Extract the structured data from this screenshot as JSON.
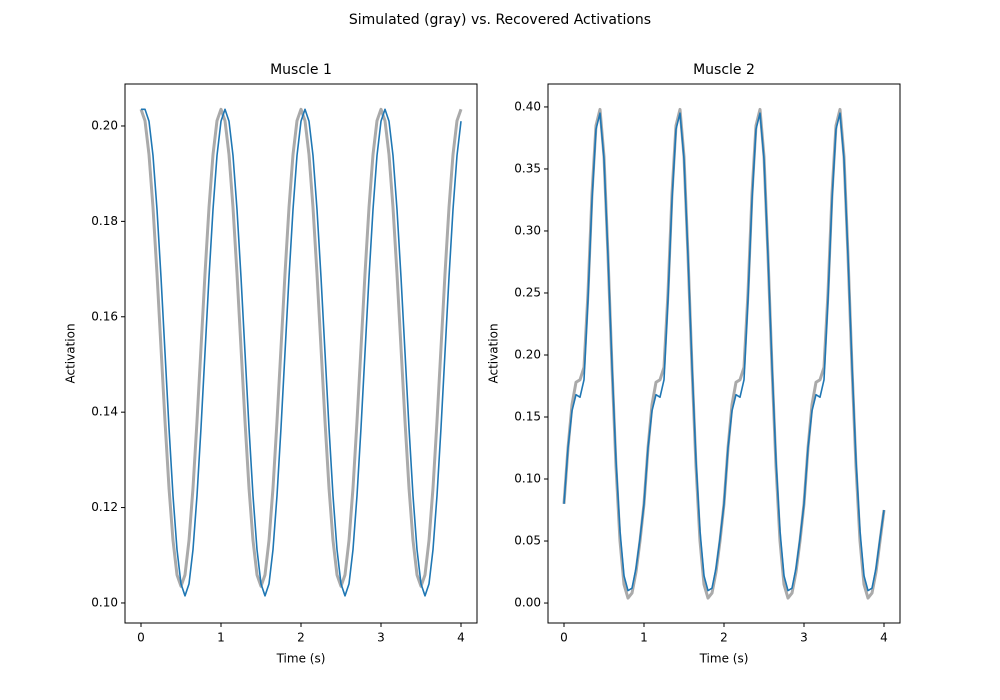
{
  "title": "Simulated (gray) vs. Recovered Activations",
  "chart_data": [
    {
      "type": "line",
      "title": "Muscle 1",
      "xlabel": "Time (s)",
      "ylabel": "Activation",
      "x": [
        0,
        0.05,
        0.1,
        0.15,
        0.2,
        0.25,
        0.3,
        0.35,
        0.4,
        0.45,
        0.5,
        0.55,
        0.6,
        0.65,
        0.7,
        0.75,
        0.8,
        0.85,
        0.9,
        0.95,
        1,
        1.05,
        1.1,
        1.15,
        1.2,
        1.25,
        1.3,
        1.35,
        1.4,
        1.45,
        1.5,
        1.55,
        1.6,
        1.65,
        1.7,
        1.75,
        1.8,
        1.85,
        1.9,
        1.95,
        2,
        2.05,
        2.1,
        2.15,
        2.2,
        2.25,
        2.3,
        2.35,
        2.4,
        2.45,
        2.5,
        2.55,
        2.6,
        2.65,
        2.7,
        2.75,
        2.8,
        2.85,
        2.9,
        2.95,
        3,
        3.05,
        3.1,
        3.15,
        3.2,
        3.25,
        3.3,
        3.35,
        3.4,
        3.45,
        3.5,
        3.55,
        3.6,
        3.65,
        3.7,
        3.75,
        3.8,
        3.85,
        3.9,
        3.95,
        4
      ],
      "series": [
        {
          "color": "#aaaaaa",
          "width": 3,
          "values": [
            0.2035,
            0.2011,
            0.194,
            0.1829,
            0.169,
            0.1535,
            0.1381,
            0.1241,
            0.1131,
            0.1059,
            0.1035,
            0.1059,
            0.1131,
            0.1241,
            0.1381,
            0.1535,
            0.169,
            0.1829,
            0.194,
            0.2011,
            0.2035,
            0.2011,
            0.194,
            0.1829,
            0.169,
            0.1535,
            0.1381,
            0.1241,
            0.1131,
            0.1059,
            0.1035,
            0.1059,
            0.1131,
            0.1241,
            0.1381,
            0.1535,
            0.169,
            0.1829,
            0.194,
            0.2011,
            0.2035,
            0.2011,
            0.194,
            0.1829,
            0.169,
            0.1535,
            0.1381,
            0.1241,
            0.1131,
            0.1059,
            0.1035,
            0.1059,
            0.1131,
            0.1241,
            0.1381,
            0.1535,
            0.169,
            0.1829,
            0.194,
            0.2011,
            0.2035,
            0.2011,
            0.194,
            0.1829,
            0.169,
            0.1535,
            0.1381,
            0.1241,
            0.1131,
            0.1059,
            0.1035,
            0.1059,
            0.1131,
            0.1241,
            0.1381,
            0.1535,
            0.169,
            0.1829,
            0.194,
            0.2011,
            0.2035
          ]
        },
        {
          "color": "#1f77b4",
          "width": 1.6,
          "values": [
            0.2035,
            0.2035,
            0.201,
            0.1938,
            0.1825,
            0.1683,
            0.1525,
            0.1367,
            0.1225,
            0.1112,
            0.104,
            0.1015,
            0.104,
            0.1112,
            0.1225,
            0.1367,
            0.1525,
            0.1683,
            0.1825,
            0.1938,
            0.201,
            0.2035,
            0.201,
            0.1938,
            0.1825,
            0.1683,
            0.1525,
            0.1367,
            0.1225,
            0.1112,
            0.104,
            0.1015,
            0.104,
            0.1112,
            0.1225,
            0.1367,
            0.1525,
            0.1683,
            0.1825,
            0.1938,
            0.201,
            0.2035,
            0.201,
            0.1938,
            0.1825,
            0.1683,
            0.1525,
            0.1367,
            0.1225,
            0.1112,
            0.104,
            0.1015,
            0.104,
            0.1112,
            0.1225,
            0.1367,
            0.1525,
            0.1683,
            0.1825,
            0.1938,
            0.201,
            0.2035,
            0.201,
            0.1938,
            0.1825,
            0.1683,
            0.1525,
            0.1367,
            0.1225,
            0.1112,
            0.104,
            0.1015,
            0.104,
            0.1112,
            0.1225,
            0.1367,
            0.1525,
            0.1683,
            0.1825,
            0.1938,
            0.201
          ]
        }
      ],
      "xlim": [
        -0.2,
        4.2
      ],
      "xticks": [
        0,
        1,
        2,
        3,
        4
      ],
      "ylim": [
        0.0958,
        0.2088
      ],
      "yticks": [
        {
          "value": 0.1,
          "label": "0.10"
        },
        0.12,
        0.14,
        0.16,
        0.18,
        {
          "value": 0.2,
          "label": "0.20"
        }
      ]
    },
    {
      "type": "line",
      "title": "Muscle 2",
      "xlabel": "Time (s)",
      "ylabel": "Activation",
      "x": [
        0,
        0.05,
        0.1,
        0.15,
        0.2,
        0.25,
        0.3,
        0.35,
        0.4,
        0.45,
        0.5,
        0.55,
        0.6,
        0.65,
        0.7,
        0.75,
        0.8,
        0.85,
        0.9,
        0.95,
        1,
        1.05,
        1.1,
        1.15,
        1.2,
        1.25,
        1.3,
        1.35,
        1.4,
        1.45,
        1.5,
        1.55,
        1.6,
        1.65,
        1.7,
        1.75,
        1.8,
        1.85,
        1.9,
        1.95,
        2,
        2.05,
        2.1,
        2.15,
        2.2,
        2.25,
        2.3,
        2.35,
        2.4,
        2.45,
        2.5,
        2.55,
        2.6,
        2.65,
        2.7,
        2.75,
        2.8,
        2.85,
        2.9,
        2.95,
        3,
        3.05,
        3.1,
        3.15,
        3.2,
        3.25,
        3.3,
        3.35,
        3.4,
        3.45,
        3.5,
        3.55,
        3.6,
        3.65,
        3.7,
        3.75,
        3.8,
        3.85,
        3.9,
        3.95,
        4
      ],
      "series": [
        {
          "color": "#aaaaaa",
          "width": 3,
          "values": [
            0.08,
            0.125,
            0.16,
            0.178,
            0.18,
            0.19,
            0.25,
            0.33,
            0.385,
            0.398,
            0.36,
            0.28,
            0.19,
            0.11,
            0.05,
            0.015,
            0.004,
            0.008,
            0.025,
            0.05,
            0.08,
            0.125,
            0.16,
            0.178,
            0.18,
            0.19,
            0.25,
            0.33,
            0.385,
            0.398,
            0.36,
            0.28,
            0.19,
            0.11,
            0.05,
            0.015,
            0.004,
            0.008,
            0.025,
            0.05,
            0.08,
            0.125,
            0.16,
            0.178,
            0.18,
            0.19,
            0.25,
            0.33,
            0.385,
            0.398,
            0.36,
            0.28,
            0.19,
            0.11,
            0.05,
            0.015,
            0.004,
            0.008,
            0.025,
            0.05,
            0.08,
            0.125,
            0.16,
            0.178,
            0.18,
            0.19,
            0.25,
            0.33,
            0.385,
            0.398,
            0.36,
            0.28,
            0.19,
            0.11,
            0.05,
            0.015,
            0.004,
            0.008,
            0.025,
            0.05,
            0.075
          ]
        },
        {
          "color": "#1f77b4",
          "width": 1.6,
          "values": [
            0.08,
            0.125,
            0.155,
            0.168,
            0.166,
            0.18,
            0.245,
            0.325,
            0.382,
            0.395,
            0.358,
            0.28,
            0.192,
            0.115,
            0.058,
            0.022,
            0.01,
            0.012,
            0.028,
            0.052,
            0.08,
            0.125,
            0.155,
            0.168,
            0.166,
            0.18,
            0.245,
            0.325,
            0.382,
            0.395,
            0.358,
            0.28,
            0.192,
            0.115,
            0.058,
            0.022,
            0.01,
            0.012,
            0.028,
            0.052,
            0.08,
            0.125,
            0.155,
            0.168,
            0.166,
            0.18,
            0.245,
            0.325,
            0.382,
            0.395,
            0.358,
            0.28,
            0.192,
            0.115,
            0.058,
            0.022,
            0.01,
            0.012,
            0.028,
            0.052,
            0.08,
            0.125,
            0.155,
            0.168,
            0.166,
            0.18,
            0.245,
            0.325,
            0.382,
            0.395,
            0.358,
            0.28,
            0.192,
            0.115,
            0.058,
            0.022,
            0.01,
            0.012,
            0.028,
            0.052,
            0.075
          ]
        }
      ],
      "xlim": [
        -0.2,
        4.2
      ],
      "xticks": [
        0,
        1,
        2,
        3,
        4
      ],
      "ylim": [
        -0.0161,
        0.4185
      ],
      "yticks": [
        {
          "value": 0,
          "label": "0.00"
        },
        0.05,
        {
          "value": 0.1,
          "label": "0.10"
        },
        0.15,
        {
          "value": 0.2,
          "label": "0.20"
        },
        0.25,
        {
          "value": 0.3,
          "label": "0.30"
        },
        0.35,
        {
          "value": 0.4,
          "label": "0.40"
        }
      ]
    }
  ]
}
